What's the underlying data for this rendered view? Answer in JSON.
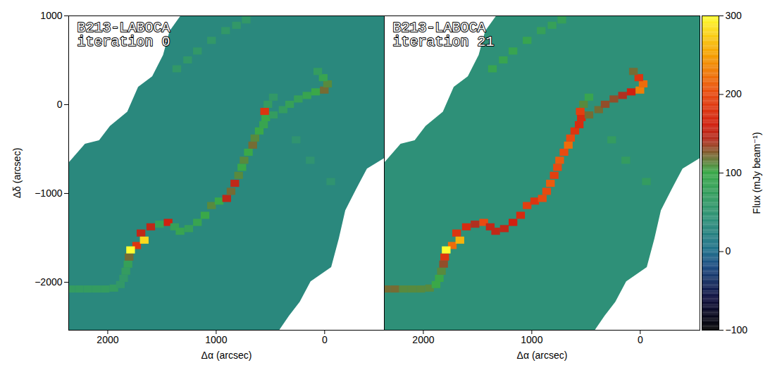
{
  "chart_data": {
    "type": "heatmap",
    "x_label": "Δα (arcsec)",
    "y_label": "Δδ (arcsec)",
    "xlim": [
      2360,
      -550
    ],
    "ylim": [
      -2540,
      1000
    ],
    "xticks": [
      2000,
      1000,
      0
    ],
    "yticks": [
      1000,
      0,
      -1000,
      -2000
    ],
    "cell_size": 80,
    "footprint": [
      [
        2360,
        -650
      ],
      [
        2210,
        -440
      ],
      [
        2080,
        -400
      ],
      [
        1980,
        -240
      ],
      [
        1820,
        -80
      ],
      [
        1720,
        200
      ],
      [
        1590,
        320
      ],
      [
        1490,
        560
      ],
      [
        1430,
        830
      ],
      [
        1330,
        1000
      ],
      [
        -550,
        1000
      ],
      [
        -550,
        -600
      ],
      [
        -390,
        -720
      ],
      [
        -290,
        -950
      ],
      [
        -190,
        -1190
      ],
      [
        -130,
        -1510
      ],
      [
        -60,
        -1830
      ],
      [
        130,
        -1990
      ],
      [
        230,
        -2220
      ],
      [
        330,
        -2380
      ],
      [
        420,
        -2540
      ],
      [
        2360,
        -2540
      ]
    ],
    "colorbar": {
      "label": "Flux (mJy beam⁻¹)",
      "range": [
        -100,
        300
      ],
      "ticks": [
        -100,
        0,
        100,
        200,
        300
      ]
    },
    "panels": [
      {
        "title": "B213-LABOCA iteration 0",
        "background_flux": 30,
        "cells": [
          [
            2340,
            -2080,
            70
          ],
          [
            2260,
            -2080,
            70
          ],
          [
            2180,
            -2080,
            70
          ],
          [
            2100,
            -2080,
            70
          ],
          [
            2020,
            -2080,
            70
          ],
          [
            1940,
            -2070,
            70
          ],
          [
            1880,
            -2030,
            60
          ],
          [
            1850,
            -1960,
            60
          ],
          [
            1830,
            -1880,
            70
          ],
          [
            1810,
            -1800,
            80
          ],
          [
            1800,
            -1720,
            120
          ],
          [
            1730,
            -1590,
            180
          ],
          [
            1690,
            -1450,
            150
          ],
          [
            1600,
            -1380,
            150
          ],
          [
            1520,
            -1350,
            80
          ],
          [
            1440,
            -1330,
            160
          ],
          [
            1380,
            -1380,
            80
          ],
          [
            1330,
            -1430,
            90
          ],
          [
            1250,
            -1400,
            80
          ],
          [
            1170,
            -1330,
            90
          ],
          [
            1100,
            -1250,
            100
          ],
          [
            1040,
            -1140,
            110
          ],
          [
            970,
            -1090,
            100
          ],
          [
            900,
            -1060,
            150
          ],
          [
            860,
            -980,
            120
          ],
          [
            825,
            -890,
            150
          ],
          [
            790,
            -800,
            110
          ],
          [
            760,
            -710,
            100
          ],
          [
            740,
            -630,
            110
          ],
          [
            700,
            -540,
            100
          ],
          [
            660,
            -460,
            120
          ],
          [
            640,
            -380,
            110
          ],
          [
            600,
            -300,
            100
          ],
          [
            560,
            -230,
            90
          ],
          [
            540,
            -150,
            100
          ],
          [
            470,
            -120,
            70
          ],
          [
            380,
            -60,
            70
          ],
          [
            320,
            0,
            80
          ],
          [
            240,
            60,
            80
          ],
          [
            160,
            100,
            90
          ],
          [
            80,
            140,
            100
          ],
          [
            0,
            160,
            120
          ],
          [
            -30,
            230,
            110
          ],
          [
            10,
            300,
            90
          ],
          [
            60,
            370,
            70
          ],
          [
            520,
            0,
            70
          ],
          [
            470,
            80,
            60
          ],
          [
            550,
            -80,
            180
          ],
          [
            1360,
            400,
            60
          ],
          [
            1260,
            500,
            60
          ],
          [
            1170,
            600,
            60
          ],
          [
            1040,
            720,
            60
          ],
          [
            910,
            830,
            60
          ],
          [
            810,
            890,
            60
          ],
          [
            720,
            950,
            60
          ],
          [
            260,
            -400,
            50
          ],
          [
            130,
            -630,
            50
          ],
          [
            -60,
            -870,
            50
          ],
          [
            1660,
            -1530,
            280
          ],
          [
            1786,
            -1640,
            300
          ]
        ]
      },
      {
        "title": "B213-LABOCA iteration 21",
        "background_flux": 40,
        "tick_labels": "x",
        "cells": [
          [
            2340,
            -2080,
            120
          ],
          [
            2260,
            -2080,
            120
          ],
          [
            2180,
            -2080,
            110
          ],
          [
            2100,
            -2080,
            110
          ],
          [
            2020,
            -2080,
            110
          ],
          [
            1940,
            -2070,
            110
          ],
          [
            1880,
            -2030,
            100
          ],
          [
            1850,
            -1960,
            100
          ],
          [
            1830,
            -1880,
            110
          ],
          [
            1810,
            -1800,
            130
          ],
          [
            1800,
            -1720,
            180
          ],
          [
            1730,
            -1590,
            220
          ],
          [
            1690,
            -1450,
            180
          ],
          [
            1600,
            -1380,
            170
          ],
          [
            1520,
            -1350,
            140
          ],
          [
            1440,
            -1330,
            200
          ],
          [
            1380,
            -1380,
            150
          ],
          [
            1330,
            -1430,
            150
          ],
          [
            1250,
            -1400,
            150
          ],
          [
            1170,
            -1330,
            160
          ],
          [
            1100,
            -1250,
            170
          ],
          [
            1040,
            -1140,
            190
          ],
          [
            970,
            -1090,
            180
          ],
          [
            900,
            -1060,
            200
          ],
          [
            860,
            -980,
            200
          ],
          [
            825,
            -890,
            210
          ],
          [
            790,
            -800,
            190
          ],
          [
            760,
            -710,
            200
          ],
          [
            740,
            -630,
            210
          ],
          [
            700,
            -540,
            200
          ],
          [
            660,
            -460,
            220
          ],
          [
            640,
            -380,
            200
          ],
          [
            600,
            -300,
            180
          ],
          [
            560,
            -230,
            170
          ],
          [
            540,
            -150,
            170
          ],
          [
            470,
            -120,
            120
          ],
          [
            380,
            -60,
            120
          ],
          [
            320,
            0,
            130
          ],
          [
            240,
            60,
            130
          ],
          [
            160,
            100,
            140
          ],
          [
            80,
            140,
            160
          ],
          [
            0,
            160,
            230
          ],
          [
            -30,
            230,
            220
          ],
          [
            10,
            300,
            180
          ],
          [
            60,
            370,
            120
          ],
          [
            520,
            0,
            110
          ],
          [
            470,
            80,
            90
          ],
          [
            550,
            -80,
            190
          ],
          [
            1360,
            400,
            90
          ],
          [
            1260,
            500,
            90
          ],
          [
            1170,
            600,
            90
          ],
          [
            1040,
            720,
            90
          ],
          [
            910,
            830,
            80
          ],
          [
            810,
            890,
            80
          ],
          [
            720,
            950,
            80
          ],
          [
            260,
            -400,
            70
          ],
          [
            130,
            -630,
            70
          ],
          [
            -60,
            -870,
            70
          ],
          [
            1660,
            -1530,
            260
          ],
          [
            1786,
            -1640,
            300
          ]
        ]
      }
    ]
  }
}
